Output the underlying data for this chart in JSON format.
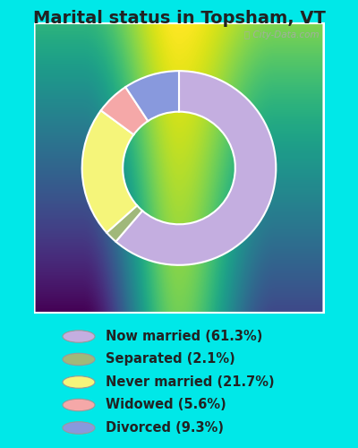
{
  "title": "Marital status in Topsham, VT",
  "slices": [
    {
      "label": "Now married (61.3%)",
      "value": 61.3,
      "color": "#c4aee0"
    },
    {
      "label": "Separated (2.1%)",
      "value": 2.1,
      "color": "#a0b87a"
    },
    {
      "label": "Never married (21.7%)",
      "value": 21.7,
      "color": "#f5f57a"
    },
    {
      "label": "Widowed (5.6%)",
      "value": 5.6,
      "color": "#f5a8a8"
    },
    {
      "label": "Divorced (9.3%)",
      "value": 9.3,
      "color": "#8899dd"
    }
  ],
  "bg_outer": "#00e8e8",
  "bg_chart_gradient_top": "#e8f5ee",
  "bg_chart_gradient_bottom": "#d0edd8",
  "watermark": "City-Data.com",
  "title_fontsize": 14,
  "legend_fontsize": 10.5,
  "start_angle": 90,
  "title_color": "#222222"
}
